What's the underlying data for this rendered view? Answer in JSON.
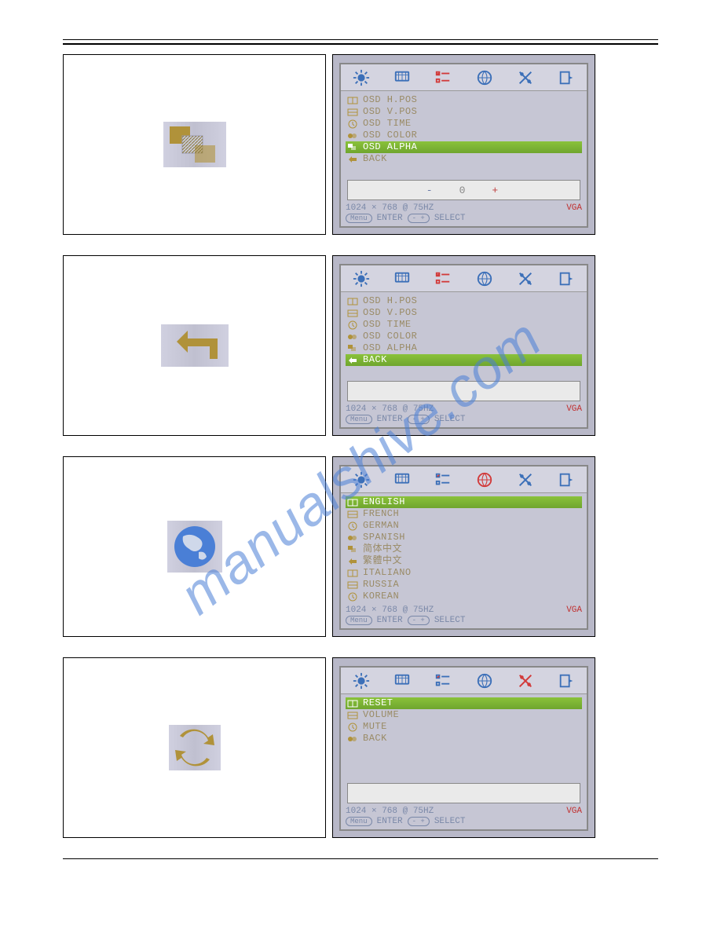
{
  "watermark": "manualshive.com",
  "colors": {
    "tab_blue": "#3b6fb8",
    "tab_red": "#d23a3a",
    "sel_green_top": "#8ac23a",
    "sel_green_bot": "#6fa52e",
    "menu_text": "#9a8b66",
    "status_text": "#7a88a8",
    "vga": "#c03030",
    "icon_olive": "#b0923a"
  },
  "status": {
    "resolution": "1024 × 768 @ 75HZ",
    "source": "VGA",
    "menu_label": "Menu",
    "enter": "ENTER",
    "select_pill": "- +",
    "select": "SELECT"
  },
  "panel1": {
    "active_tab": 2,
    "items": [
      {
        "label": "OSD H.POS",
        "sel": false
      },
      {
        "label": "OSD V.POS",
        "sel": false
      },
      {
        "label": "OSD TIME",
        "sel": false
      },
      {
        "label": "OSD COLOR",
        "sel": false
      },
      {
        "label": "OSD ALPHA",
        "sel": true
      },
      {
        "label": "BACK",
        "sel": false
      }
    ],
    "value_minus": "-",
    "value_center": "0",
    "value_plus": "+",
    "show_valuebox": true
  },
  "panel2": {
    "active_tab": 2,
    "items": [
      {
        "label": "OSD H.POS",
        "sel": false
      },
      {
        "label": "OSD V.POS",
        "sel": false
      },
      {
        "label": "OSD TIME",
        "sel": false
      },
      {
        "label": "OSD COLOR",
        "sel": false
      },
      {
        "label": "OSD ALPHA",
        "sel": false
      },
      {
        "label": "BACK",
        "sel": true
      }
    ],
    "show_valuebox": true,
    "value_minus": "",
    "value_center": "",
    "value_plus": ""
  },
  "panel3": {
    "active_tab": 3,
    "items": [
      {
        "label": "ENGLISH",
        "sel": true
      },
      {
        "label": "FRENCH",
        "sel": false
      },
      {
        "label": "GERMAN",
        "sel": false
      },
      {
        "label": "SPANISH",
        "sel": false
      },
      {
        "label": "简体中文",
        "sel": false
      },
      {
        "label": "繁體中文",
        "sel": false
      },
      {
        "label": "ITALIANO",
        "sel": false
      },
      {
        "label": "RUSSIA",
        "sel": false
      },
      {
        "label": "KOREAN",
        "sel": false
      }
    ],
    "show_valuebox": false
  },
  "panel4": {
    "active_tab": 4,
    "items": [
      {
        "label": "RESET",
        "sel": true
      },
      {
        "label": "VOLUME",
        "sel": false
      },
      {
        "label": "MUTE",
        "sel": false
      },
      {
        "label": "BACK",
        "sel": false
      }
    ],
    "show_valuebox": true,
    "value_minus": "",
    "value_center": "",
    "value_plus": ""
  }
}
